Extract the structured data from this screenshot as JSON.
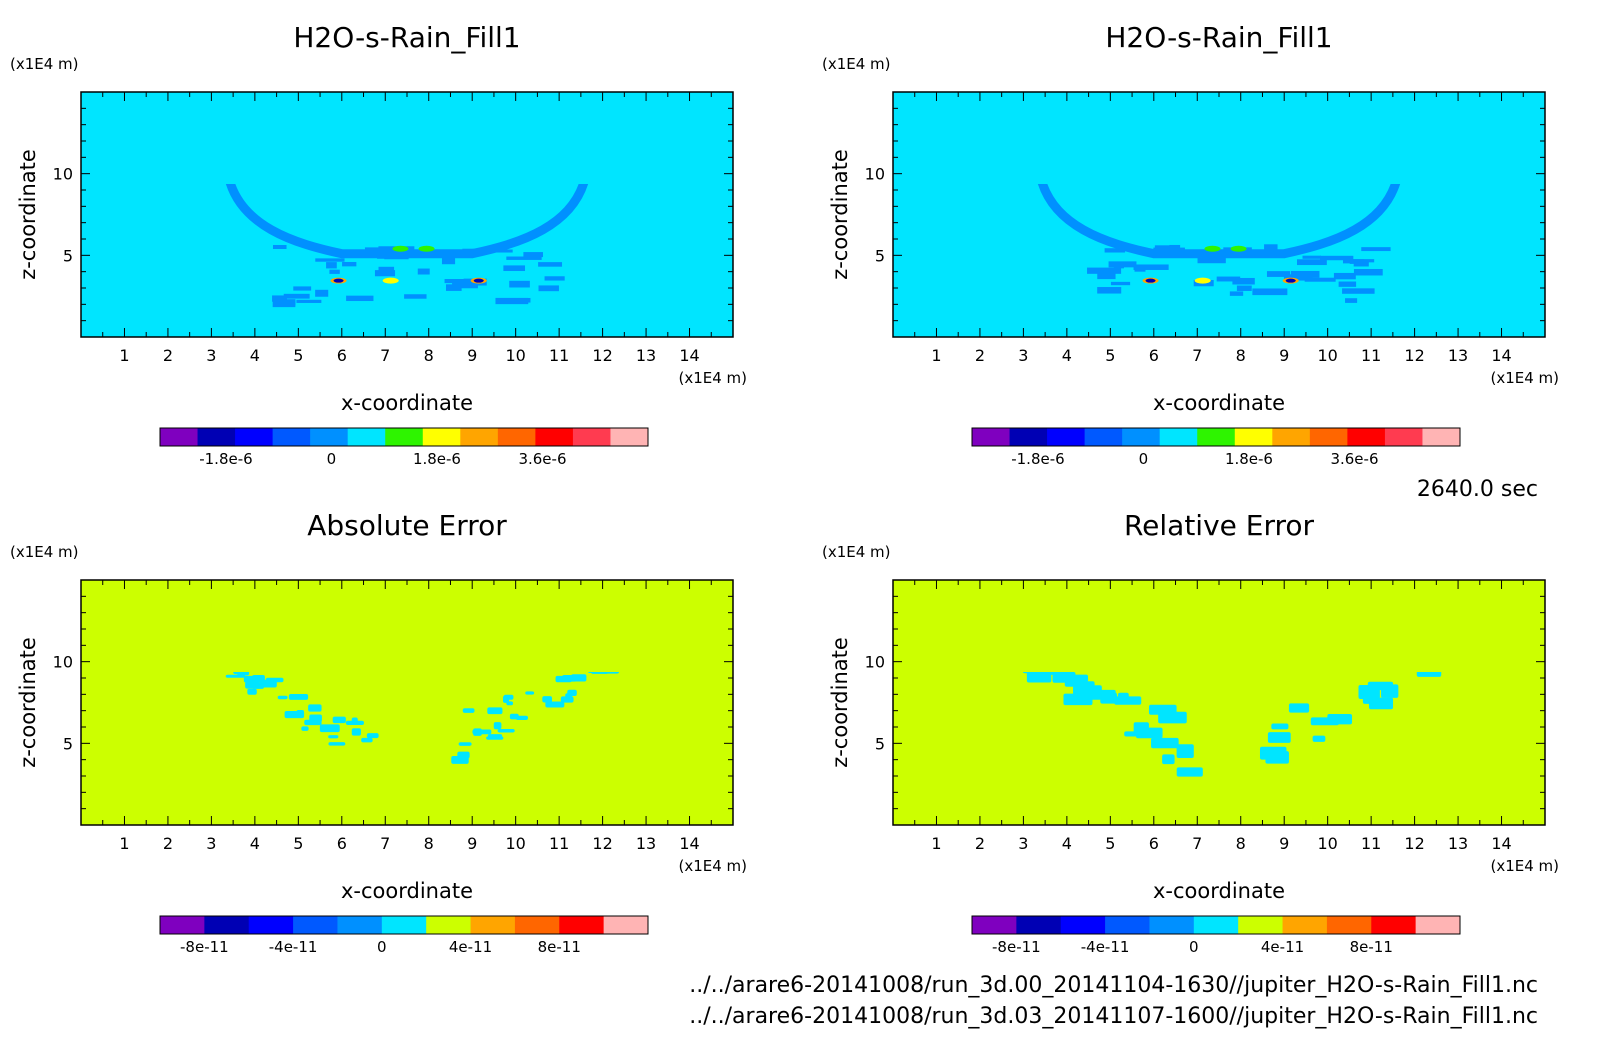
{
  "timestamp": "2640.0 sec",
  "file_paths": [
    "../../arare6-20141008/run_3d.00_20141104-1630//jupiter_H2O-s-Rain_Fill1.nc",
    "../../arare6-20141008/run_3d.03_20141107-1600//jupiter_H2O-s-Rain_Fill1.nc"
  ],
  "chart_data": [
    {
      "type": "heatmap",
      "title": "H2O-s-Rain_Fill1",
      "xlabel": "x-coordinate",
      "ylabel": "z-coordinate",
      "x_unit": "(x1E4 m)",
      "y_unit": "(x1E4 m)",
      "xlim": [
        0,
        15
      ],
      "ylim": [
        0,
        15
      ],
      "x_ticks": [
        "1",
        "2",
        "3",
        "4",
        "5",
        "6",
        "7",
        "8",
        "9",
        "10",
        "11",
        "12",
        "13",
        "14"
      ],
      "y_ticks": [
        "5",
        "10"
      ],
      "background_level": "0",
      "background_color": "#00e5ff",
      "colorbar": {
        "colors": [
          "#7f00bf",
          "#0000b4",
          "#0000ff",
          "#0059ff",
          "#0090ff",
          "#00e5ff",
          "#2ef400",
          "#ffff00",
          "#ffa500",
          "#ff6600",
          "#ff0000",
          "#ff3b50",
          "#ffb4b4"
        ],
        "labels": [
          "-1.8e-6",
          "0",
          "1.8e-6",
          "3.6e-6"
        ]
      }
    },
    {
      "type": "heatmap",
      "title": "H2O-s-Rain_Fill1",
      "xlabel": "x-coordinate",
      "ylabel": "z-coordinate",
      "x_unit": "(x1E4 m)",
      "y_unit": "(x1E4 m)",
      "xlim": [
        0,
        15
      ],
      "ylim": [
        0,
        15
      ],
      "x_ticks": [
        "1",
        "2",
        "3",
        "4",
        "5",
        "6",
        "7",
        "8",
        "9",
        "10",
        "11",
        "12",
        "13",
        "14"
      ],
      "y_ticks": [
        "5",
        "10"
      ],
      "background_level": "0",
      "background_color": "#00e5ff",
      "colorbar": {
        "colors": [
          "#7f00bf",
          "#0000b4",
          "#0000ff",
          "#0059ff",
          "#0090ff",
          "#00e5ff",
          "#2ef400",
          "#ffff00",
          "#ffa500",
          "#ff6600",
          "#ff0000",
          "#ff3b50",
          "#ffb4b4"
        ],
        "labels": [
          "-1.8e-6",
          "0",
          "1.8e-6",
          "3.6e-6"
        ]
      }
    },
    {
      "type": "heatmap",
      "title": "Absolute Error",
      "xlabel": "x-coordinate",
      "ylabel": "z-coordinate",
      "x_unit": "(x1E4 m)",
      "y_unit": "(x1E4 m)",
      "xlim": [
        0,
        15
      ],
      "ylim": [
        0,
        15
      ],
      "x_ticks": [
        "1",
        "2",
        "3",
        "4",
        "5",
        "6",
        "7",
        "8",
        "9",
        "10",
        "11",
        "12",
        "13",
        "14"
      ],
      "y_ticks": [
        "5",
        "10"
      ],
      "background_level": "0",
      "background_color": "#ccff00",
      "colorbar": {
        "colors": [
          "#7f00bf",
          "#0000b4",
          "#0000ff",
          "#0059ff",
          "#0090ff",
          "#00e5ff",
          "#ccff00",
          "#ffa500",
          "#ff6600",
          "#ff0000",
          "#ffb4b4"
        ],
        "labels": [
          "-8e-11",
          "-4e-11",
          "0",
          "4e-11",
          "8e-11"
        ]
      }
    },
    {
      "type": "heatmap",
      "title": "Relative Error",
      "xlabel": "x-coordinate",
      "ylabel": "z-coordinate",
      "x_unit": "(x1E4 m)",
      "y_unit": "(x1E4 m)",
      "xlim": [
        0,
        15
      ],
      "ylim": [
        0,
        15
      ],
      "x_ticks": [
        "1",
        "2",
        "3",
        "4",
        "5",
        "6",
        "7",
        "8",
        "9",
        "10",
        "11",
        "12",
        "13",
        "14"
      ],
      "y_ticks": [
        "5",
        "10"
      ],
      "background_level": "0",
      "background_color": "#ccff00",
      "colorbar": {
        "colors": [
          "#7f00bf",
          "#0000b4",
          "#0000ff",
          "#0059ff",
          "#0090ff",
          "#00e5ff",
          "#ccff00",
          "#ffa500",
          "#ff6600",
          "#ff0000",
          "#ffb4b4"
        ],
        "labels": [
          "-8e-11",
          "-4e-11",
          "0",
          "4e-11",
          "8e-11"
        ]
      }
    }
  ]
}
